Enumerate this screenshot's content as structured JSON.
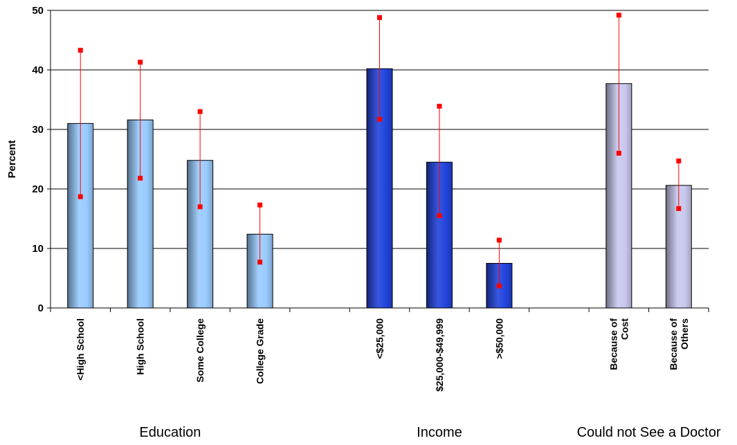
{
  "chart_data": {
    "type": "bar",
    "ylabel": "Percent",
    "ylim": [
      0,
      50
    ],
    "yticks": [
      0,
      10,
      20,
      30,
      40,
      50
    ],
    "grid": true,
    "categories": [
      [
        "<High School"
      ],
      [
        "High School"
      ],
      [
        "Some College"
      ],
      [
        "College Grade"
      ],
      null,
      [
        "<$25,000"
      ],
      [
        "$25,000-$49,999"
      ],
      [
        ">$50,000"
      ],
      null,
      [
        "Because of",
        "Cost"
      ],
      [
        "Because of",
        "Others"
      ]
    ],
    "values": [
      31.0,
      31.6,
      24.8,
      12.4,
      null,
      40.2,
      24.5,
      7.5,
      null,
      37.7,
      20.6
    ],
    "error_low": [
      18.7,
      21.8,
      17.0,
      7.7,
      null,
      31.7,
      15.5,
      3.7,
      null,
      26.0,
      16.7
    ],
    "error_high": [
      43.3,
      41.3,
      33.0,
      17.3,
      null,
      48.8,
      33.9,
      11.4,
      null,
      49.2,
      24.7
    ],
    "groups": [
      {
        "label": "Education",
        "color": "#99ccff",
        "indices": [
          0,
          1,
          2,
          3
        ]
      },
      {
        "label": "Income",
        "color": "#2244dd",
        "indices": [
          5,
          6,
          7
        ]
      },
      {
        "label": "Could not See a Doctor",
        "color": "#c8c8ee",
        "indices": [
          9,
          10
        ]
      }
    ],
    "error_color": "#ff0000"
  }
}
